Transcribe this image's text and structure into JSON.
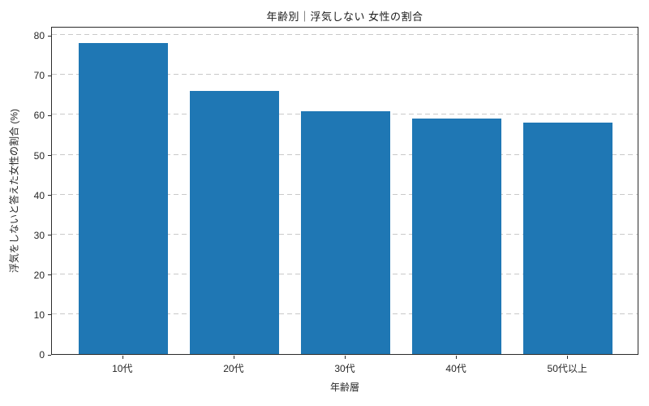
{
  "chart_data": {
    "type": "bar",
    "title": "年齢別｜浮気しない 女性の割合",
    "xlabel": "年齢層",
    "ylabel": "浮気をしないと答えた女性の割合 (%)",
    "categories": [
      "10代",
      "20代",
      "30代",
      "40代",
      "50代以上"
    ],
    "values": [
      78,
      66,
      61,
      59,
      58
    ],
    "yticks": [
      0,
      10,
      20,
      30,
      40,
      50,
      60,
      70,
      80
    ],
    "ylim": [
      0,
      82.3
    ],
    "xlim_units": [
      -0.64,
      4.64
    ],
    "bar_width_units": 0.8,
    "bar_color": "#1f77b4",
    "grid": "horizontal-dashed",
    "grid_color": "#c9c9c9",
    "legend_position": "none",
    "background_color": "#ffffff",
    "spine_color": "#2b2b2b",
    "text_color": "#262626"
  }
}
